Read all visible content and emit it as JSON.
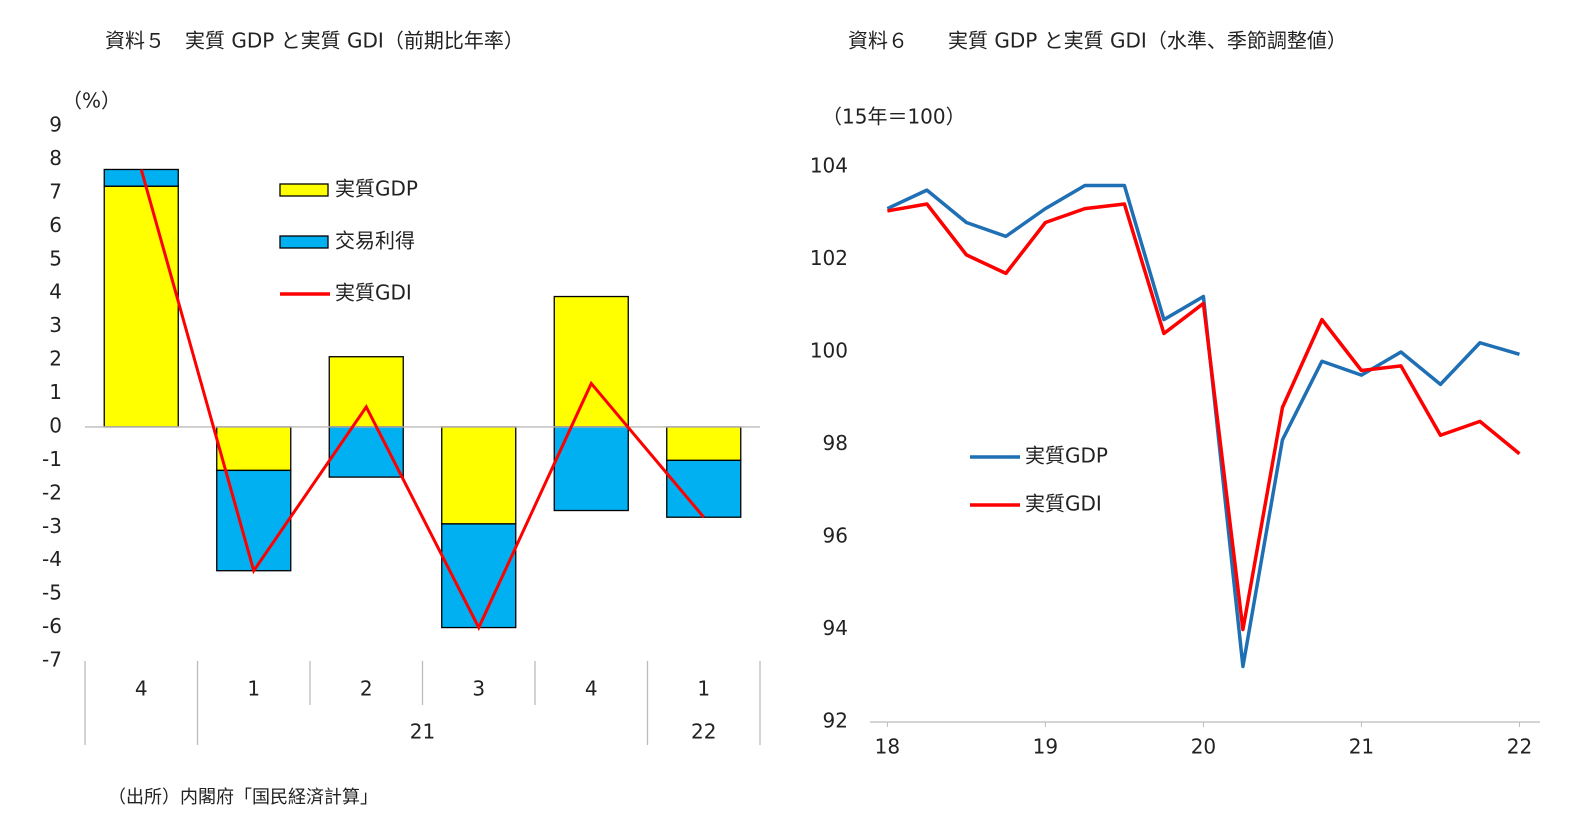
{
  "chart_data": [
    {
      "type": "bar",
      "stacked": true,
      "title": "資料５　実質 GDP と実質 GDI（前期比年率）",
      "y_label": "（%）",
      "categories": [
        "4",
        "1",
        "2",
        "3",
        "4",
        "1"
      ],
      "year_labels": [
        null,
        "21",
        "21",
        "21",
        "21",
        "22"
      ],
      "series": [
        {
          "name": "実質GDP",
          "color": "#ffff00",
          "values": [
            7.2,
            -1.3,
            2.1,
            -2.9,
            3.9,
            -1.0
          ]
        },
        {
          "name": "交易利得",
          "color": "#00b0f0",
          "values": [
            0.5,
            -3.0,
            -1.5,
            -3.1,
            -2.5,
            -1.7
          ]
        },
        {
          "name": "実質GDI",
          "type": "line",
          "color": "#ff0000",
          "values": [
            7.7,
            -4.3,
            0.6,
            -6.0,
            1.3,
            -2.7
          ]
        }
      ],
      "ylim": [
        -7,
        9
      ],
      "yticks": [
        -7,
        -6,
        -5,
        -4,
        -3,
        -2,
        -1,
        0,
        1,
        2,
        3,
        4,
        5,
        6,
        7,
        8,
        9
      ]
    },
    {
      "type": "line",
      "title": "資料６　　実質 GDP と実質 GDI（水準、季節調整値）",
      "y_label": "（15年＝100）",
      "x": [
        18,
        18.25,
        18.5,
        18.75,
        19,
        19.25,
        19.5,
        19.75,
        20,
        20.25,
        20.5,
        20.75,
        21,
        21.25,
        21.5,
        21.75,
        22
      ],
      "series": [
        {
          "name": "実質GDP",
          "color": "#1f6fb5",
          "values": [
            103.1,
            103.5,
            102.8,
            102.5,
            103.1,
            103.6,
            103.6,
            100.7,
            101.2,
            93.2,
            98.1,
            99.8,
            99.5,
            100.0,
            99.3,
            100.2,
            99.95
          ]
        },
        {
          "name": "実質GDI",
          "color": "#ff0000",
          "values": [
            103.05,
            103.2,
            102.1,
            101.7,
            102.8,
            103.1,
            103.2,
            100.4,
            101.05,
            94.0,
            98.8,
            100.7,
            99.6,
            99.7,
            98.2,
            98.5,
            97.8
          ]
        }
      ],
      "xlim": [
        17.89,
        22.13
      ],
      "xticks": [
        18,
        19,
        20,
        21,
        22
      ],
      "ylim": [
        92,
        104
      ],
      "yticks": [
        92,
        94,
        96,
        98,
        100,
        102,
        104
      ]
    }
  ],
  "source": "（出所）内閣府「国民経済計算」"
}
